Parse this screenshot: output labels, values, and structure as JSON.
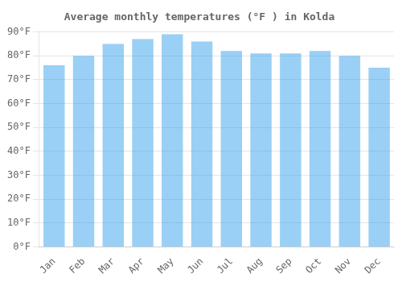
{
  "chart_data": {
    "type": "bar",
    "title": "Average monthly temperatures (°F ) in Kolda",
    "categories": [
      "Jan",
      "Feb",
      "Mar",
      "Apr",
      "May",
      "Jun",
      "Jul",
      "Aug",
      "Sep",
      "Oct",
      "Nov",
      "Dec"
    ],
    "values": [
      76,
      80,
      85,
      87,
      89,
      86,
      82,
      81,
      81,
      82,
      80,
      75
    ],
    "ylim": [
      0,
      90
    ],
    "yticks": [
      {
        "value": 0,
        "label": "0°F"
      },
      {
        "value": 10,
        "label": "10°F"
      },
      {
        "value": 20,
        "label": "20°F"
      },
      {
        "value": 30,
        "label": "30°F"
      },
      {
        "value": 40,
        "label": "40°F"
      },
      {
        "value": 50,
        "label": "50°F"
      },
      {
        "value": 60,
        "label": "60°F"
      },
      {
        "value": 70,
        "label": "70°F"
      },
      {
        "value": 80,
        "label": "80°F"
      },
      {
        "value": 90,
        "label": "90°F"
      }
    ],
    "grid": true
  }
}
